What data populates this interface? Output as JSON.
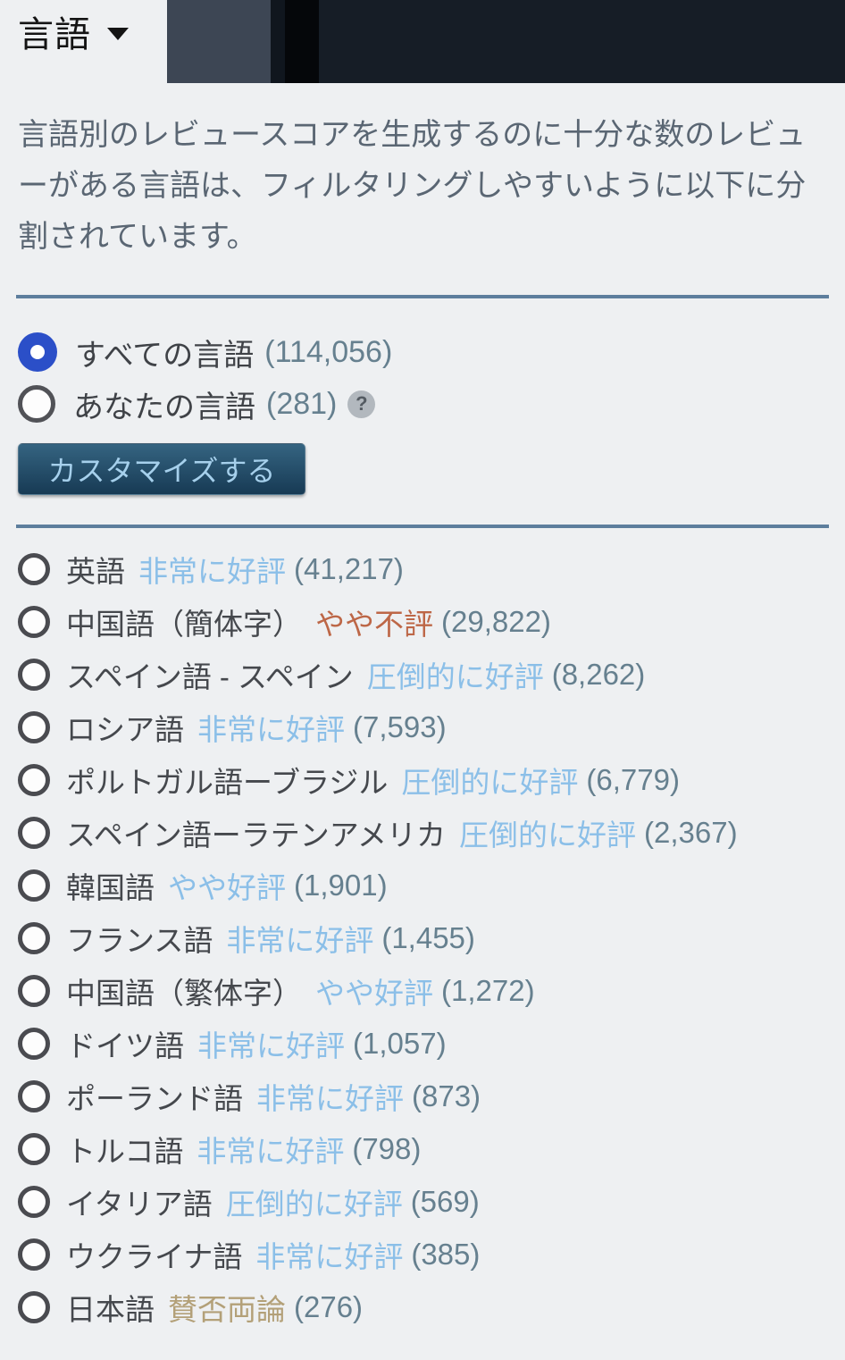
{
  "header": {
    "title": "言語",
    "caret_icon": "dropdown-caret"
  },
  "description": "言語別のレビュースコアを生成するのに十分な数のレビューがある言語は、フィルタリングしやすいように以下に分割されています。",
  "scope_options": [
    {
      "label": "すべての言語",
      "count": "(114,056)",
      "selected": true
    },
    {
      "label": "あなたの言語",
      "count": "(281)",
      "selected": false,
      "help_icon": "?"
    }
  ],
  "customize_button": {
    "label": "カスタマイズする"
  },
  "language_list": {
    "items": [
      {
        "label": "英語",
        "summary": "非常に好評",
        "tone": "positive",
        "count": "(41,217)"
      },
      {
        "label": "中国語（簡体字）",
        "summary": "やや不評",
        "tone": "negative",
        "count": "(29,822)"
      },
      {
        "label": "スペイン語 - スペイン",
        "summary": "圧倒的に好評",
        "tone": "positive",
        "count": "(8,262)"
      },
      {
        "label": "ロシア語",
        "summary": "非常に好評",
        "tone": "positive",
        "count": "(7,593)"
      },
      {
        "label": "ポルトガル語ーブラジル",
        "summary": "圧倒的に好評",
        "tone": "positive",
        "count": "(6,779)"
      },
      {
        "label": "スペイン語ーラテンアメリカ",
        "summary": "圧倒的に好評",
        "tone": "positive",
        "count": "(2,367)"
      },
      {
        "label": "韓国語",
        "summary": "やや好評",
        "tone": "positive",
        "count": "(1,901)"
      },
      {
        "label": "フランス語",
        "summary": "非常に好評",
        "tone": "positive",
        "count": "(1,455)"
      },
      {
        "label": "中国語（繁体字）",
        "summary": "やや好評",
        "tone": "positive",
        "count": "(1,272)"
      },
      {
        "label": "ドイツ語",
        "summary": "非常に好評",
        "tone": "positive",
        "count": "(1,057)"
      },
      {
        "label": "ポーランド語",
        "summary": "非常に好評",
        "tone": "positive",
        "count": "(873)"
      },
      {
        "label": "トルコ語",
        "summary": "非常に好評",
        "tone": "positive",
        "count": "(798)"
      },
      {
        "label": "イタリア語",
        "summary": "圧倒的に好評",
        "tone": "positive",
        "count": "(569)"
      },
      {
        "label": "ウクライナ語",
        "summary": "非常に好評",
        "tone": "positive",
        "count": "(385)"
      },
      {
        "label": "日本語",
        "summary": "賛否両論",
        "tone": "mixed",
        "count": "(276)"
      }
    ]
  },
  "colors": {
    "radio_selected": "#2b4fc8",
    "divider": "#5d7e9d",
    "count_text": "#66808f",
    "sentiment": {
      "positive": "#8bbfe8",
      "negative": "#bd6747",
      "mixed": "#b3a078"
    }
  }
}
